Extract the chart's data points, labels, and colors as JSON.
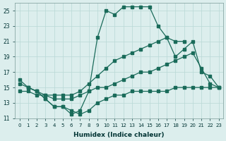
{
  "background_color": "#dceeed",
  "grid_color": "#b8d8d5",
  "line_color": "#1a6b5a",
  "xlabel": "Humidex (Indice chaleur)",
  "ylim": [
    11,
    26
  ],
  "xlim": [
    -0.5,
    23.5
  ],
  "yticks": [
    11,
    13,
    15,
    17,
    19,
    21,
    23,
    25
  ],
  "xticks": [
    0,
    1,
    2,
    3,
    4,
    5,
    6,
    7,
    8,
    9,
    10,
    11,
    12,
    13,
    14,
    15,
    16,
    17,
    18,
    19,
    20,
    21,
    22,
    23
  ],
  "line1_x": [
    0,
    1,
    2,
    3,
    4,
    5,
    6,
    7,
    8,
    9,
    10,
    11,
    12,
    13,
    14,
    15,
    16,
    17,
    18,
    19
  ],
  "line1_y": [
    16.0,
    15.0,
    14.5,
    13.5,
    12.5,
    12.5,
    11.5,
    12.0,
    14.5,
    21.5,
    25.0,
    24.5,
    25.5,
    25.5,
    25.5,
    25.5,
    23.0,
    21.5,
    21.0,
    21.0
  ],
  "line2_x": [
    0,
    1,
    2,
    3,
    4,
    5,
    6,
    7,
    8,
    9,
    10,
    11,
    12,
    13,
    14,
    15,
    16,
    17,
    18,
    19,
    20,
    21,
    22,
    23
  ],
  "line2_y": [
    15.5,
    15.0,
    14.5,
    14.0,
    14.0,
    14.0,
    14.0,
    14.5,
    15.5,
    16.5,
    17.5,
    18.5,
    19.0,
    19.5,
    20.0,
    20.5,
    21.0,
    21.5,
    19.0,
    20.0,
    21.0,
    17.0,
    16.5,
    15.0
  ],
  "line3_x": [
    0,
    1,
    2,
    3,
    4,
    5,
    6,
    7,
    8,
    9,
    10,
    11,
    12,
    13,
    14,
    15,
    16,
    17,
    18,
    19,
    20,
    21,
    22,
    23
  ],
  "line3_y": [
    14.5,
    14.5,
    14.0,
    14.0,
    13.5,
    13.5,
    13.5,
    14.0,
    14.5,
    15.0,
    15.0,
    15.5,
    16.0,
    16.5,
    17.0,
    17.0,
    17.5,
    18.0,
    18.5,
    19.0,
    19.5,
    17.5,
    15.5,
    15.0
  ],
  "line4_x": [
    1,
    2,
    3,
    4,
    5,
    6,
    7,
    8,
    9,
    10,
    11,
    12,
    13,
    14,
    15,
    16,
    17,
    18,
    19,
    20,
    21,
    22,
    23
  ],
  "line4_y": [
    15.0,
    14.5,
    13.5,
    12.5,
    12.5,
    12.0,
    11.5,
    12.0,
    13.0,
    13.5,
    14.0,
    14.0,
    14.5,
    14.5,
    14.5,
    14.5,
    14.5,
    15.0,
    15.0,
    15.0,
    15.0,
    15.0,
    15.0
  ]
}
